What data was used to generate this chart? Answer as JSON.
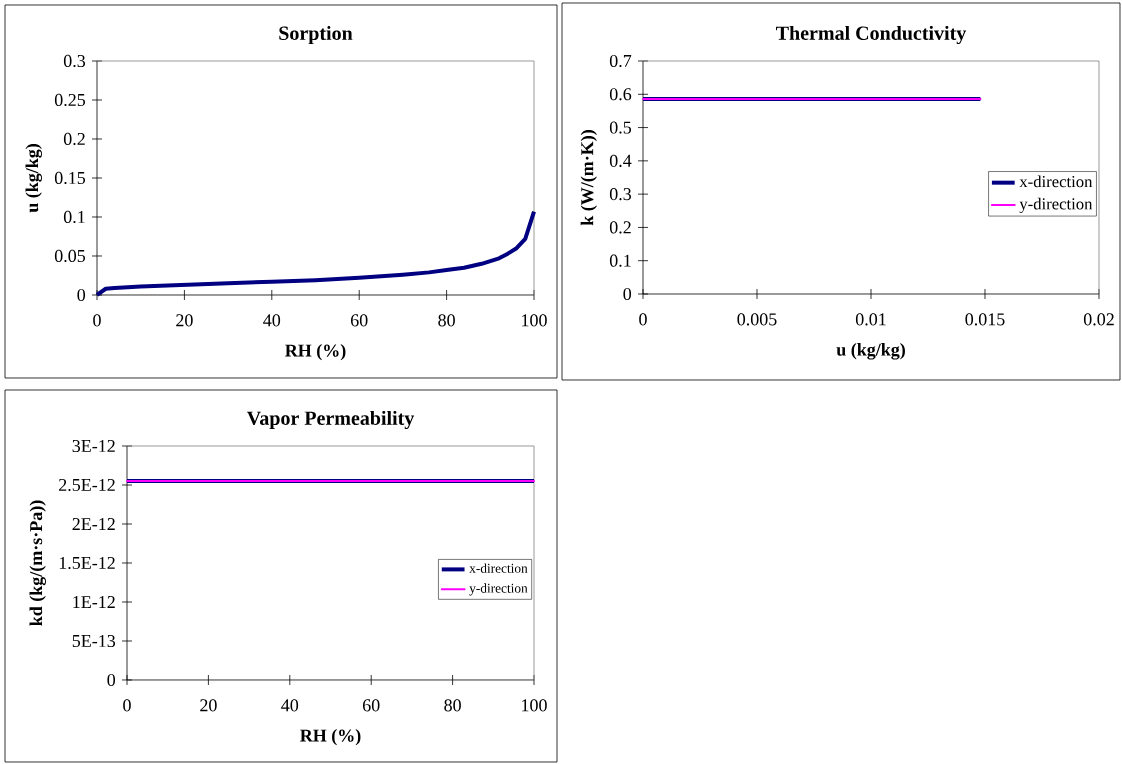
{
  "chart_data": [
    {
      "type": "line",
      "title": "Sorption",
      "xlabel": "RH (%)",
      "ylabel": "u (kg/kg)",
      "x": [
        0,
        2,
        4,
        10,
        20,
        30,
        40,
        50,
        60,
        70,
        76,
        80,
        84,
        88,
        92,
        94,
        96,
        98,
        100
      ],
      "values": [
        0,
        0.008,
        0.009,
        0.011,
        0.013,
        0.015,
        0.017,
        0.019,
        0.022,
        0.026,
        0.029,
        0.032,
        0.035,
        0.04,
        0.047,
        0.053,
        0.06,
        0.072,
        0.107
      ],
      "color": "#000080",
      "xlim": [
        0,
        100
      ],
      "xticks": [
        0,
        20,
        40,
        60,
        80,
        100
      ],
      "ylim": [
        0,
        0.3
      ],
      "yticks": [
        0,
        0.05,
        0.1,
        0.15,
        0.2,
        0.25,
        0.3
      ]
    },
    {
      "type": "line",
      "title": "Thermal Conductivity",
      "xlabel": "u (kg/kg)",
      "ylabel": "k (W/(m·K))",
      "x": [
        0,
        0.0148
      ],
      "series": [
        {
          "name": "x-direction",
          "color": "#000080",
          "values": [
            0.586,
            0.586
          ]
        },
        {
          "name": "y-direction",
          "color": "#ff00ff",
          "values": [
            0.586,
            0.586
          ]
        }
      ],
      "xlim": [
        0,
        0.02
      ],
      "xticks": [
        0,
        0.005,
        0.01,
        0.015,
        0.02
      ],
      "ylim": [
        0,
        0.7
      ],
      "yticks": [
        0,
        0.1,
        0.2,
        0.3,
        0.4,
        0.5,
        0.6,
        0.7
      ],
      "legend": "right"
    },
    {
      "type": "line",
      "title": "Vapor Permeability",
      "xlabel": "RH (%)",
      "ylabel": "kd (kg/(m·s·Pa))",
      "x": [
        0,
        100
      ],
      "series": [
        {
          "name": "x-direction",
          "color": "#000080",
          "values": [
            2.55e-12,
            2.55e-12
          ]
        },
        {
          "name": "y-direction",
          "color": "#ff00ff",
          "values": [
            2.55e-12,
            2.55e-12
          ]
        }
      ],
      "xlim": [
        0,
        100
      ],
      "xticks": [
        0,
        20,
        40,
        60,
        80,
        100
      ],
      "ylim": [
        0,
        3e-12
      ],
      "yticks": [
        0,
        {
          "value": 5e-13,
          "label": "5E-13"
        },
        {
          "value": 1e-12,
          "label": "1E-12"
        },
        {
          "value": 1.5e-12,
          "label": "1.5E-12"
        },
        {
          "value": 2e-12,
          "label": "2E-12"
        },
        {
          "value": 2.5e-12,
          "label": "2.5E-12"
        },
        {
          "value": 3e-12,
          "label": "3E-12"
        }
      ],
      "legend": "right"
    }
  ]
}
